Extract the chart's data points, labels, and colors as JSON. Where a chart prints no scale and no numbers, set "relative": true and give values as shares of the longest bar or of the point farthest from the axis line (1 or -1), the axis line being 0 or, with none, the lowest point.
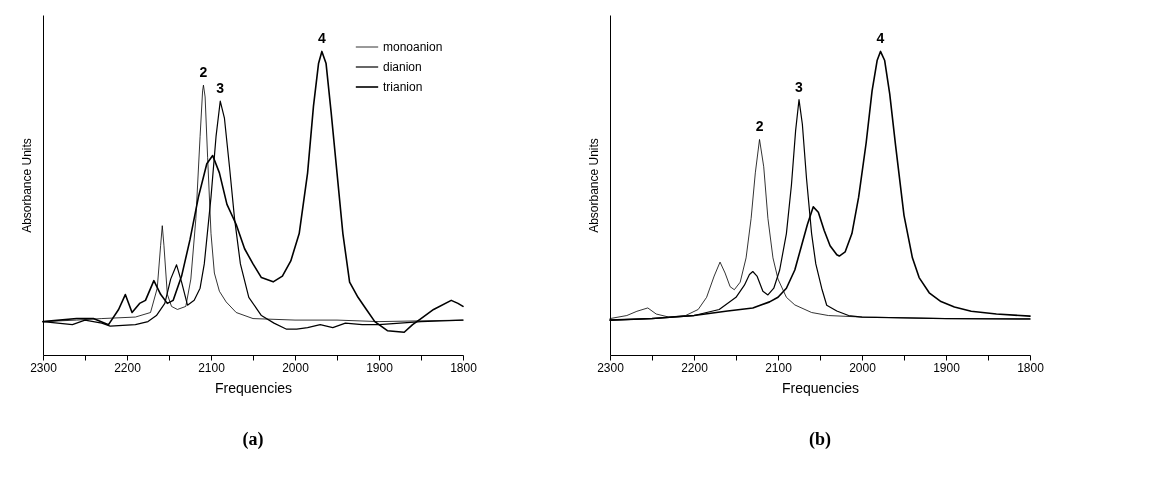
{
  "chart_data": [
    {
      "type": "line",
      "xlabel": "Frequencies",
      "ylabel": "Absorbance Units",
      "relative": true,
      "legend": "top right",
      "tick_labels": "x",
      "grid": false,
      "line_style": "solid",
      "marker": "none",
      "xlim": [
        2300,
        1800
      ],
      "xticks": [
        2300,
        {
          "value": 2250,
          "label": null
        },
        2200,
        {
          "value": 2150,
          "label": null
        },
        2100,
        {
          "value": 2050,
          "label": null
        },
        2000,
        {
          "value": 1950,
          "label": null
        },
        1900,
        {
          "value": 1850,
          "label": null
        },
        1800
      ],
      "series": [
        {
          "name": "monoanion",
          "color": "#000000",
          "x": [
            2300,
            2260,
            2230,
            2190,
            2172,
            2164,
            2160,
            2158,
            2156,
            2152,
            2147,
            2140,
            2130,
            2124,
            2118,
            2113,
            2110,
            2109,
            2107,
            2104,
            2100,
            2096,
            2090,
            2082,
            2070,
            2050,
            2000,
            1950,
            1900,
            1800
          ],
          "values": [
            0.11,
            0.115,
            0.12,
            0.125,
            0.14,
            0.22,
            0.36,
            0.426,
            0.36,
            0.2,
            0.16,
            0.15,
            0.16,
            0.25,
            0.45,
            0.72,
            0.87,
            0.889,
            0.85,
            0.65,
            0.4,
            0.27,
            0.21,
            0.175,
            0.14,
            0.12,
            0.115,
            0.115,
            0.11,
            0.115
          ]
        },
        {
          "name": "dianion",
          "color": "#000000",
          "x": [
            2300,
            2265,
            2250,
            2230,
            2220,
            2190,
            2175,
            2165,
            2155,
            2148,
            2141,
            2135,
            2128,
            2120,
            2113,
            2108,
            2100,
            2094,
            2089,
            2084,
            2078,
            2072,
            2065,
            2055,
            2040,
            2025,
            2010,
            1998,
            1985,
            1970,
            1955,
            1940,
            1920,
            1900,
            1850,
            1800
          ],
          "values": [
            0.11,
            0.1,
            0.115,
            0.105,
            0.095,
            0.1,
            0.11,
            0.13,
            0.17,
            0.25,
            0.297,
            0.24,
            0.164,
            0.18,
            0.22,
            0.3,
            0.52,
            0.72,
            0.836,
            0.78,
            0.62,
            0.45,
            0.3,
            0.19,
            0.13,
            0.105,
            0.085,
            0.085,
            0.09,
            0.1,
            0.09,
            0.105,
            0.1,
            0.1,
            0.11,
            0.115
          ]
        },
        {
          "name": "trianion",
          "color": "#000000",
          "x": [
            2300,
            2260,
            2240,
            2222,
            2210,
            2202,
            2194,
            2185,
            2178,
            2168,
            2160,
            2152,
            2145,
            2135,
            2125,
            2115,
            2105,
            2098,
            2090,
            2081,
            2070,
            2060,
            2050,
            2040,
            2026,
            2015,
            2005,
            1995,
            1985,
            1978,
            1972,
            1968,
            1963,
            1957,
            1950,
            1943,
            1935,
            1925,
            1915,
            1905,
            1890,
            1870,
            1860,
            1850,
            1835,
            1814,
            1806,
            1800
          ],
          "values": [
            0.11,
            0.12,
            0.12,
            0.1,
            0.15,
            0.199,
            0.14,
            0.17,
            0.18,
            0.245,
            0.2,
            0.17,
            0.18,
            0.26,
            0.38,
            0.52,
            0.63,
            0.657,
            0.6,
            0.496,
            0.43,
            0.35,
            0.3,
            0.255,
            0.241,
            0.26,
            0.31,
            0.4,
            0.6,
            0.82,
            0.96,
            1.0,
            0.96,
            0.8,
            0.6,
            0.4,
            0.24,
            0.19,
            0.15,
            0.11,
            0.08,
            0.075,
            0.1,
            0.12,
            0.15,
            0.18,
            0.17,
            0.16
          ]
        }
      ],
      "annotations": [
        {
          "text": "2",
          "x": 2109,
          "y": 0.889
        },
        {
          "text": "3",
          "x": 2089,
          "y": 0.836
        },
        {
          "text": "4",
          "x": 1968,
          "y": 1.0
        },
        "(a)"
      ]
    },
    {
      "type": "line",
      "xlabel": "Frequencies",
      "ylabel": "Absorbance Units",
      "relative": true,
      "tick_labels": "x",
      "grid": false,
      "line_style": "solid",
      "marker": "none",
      "xlim": [
        2300,
        1800
      ],
      "xticks": [
        2300,
        {
          "value": 2250,
          "label": null
        },
        2200,
        {
          "value": 2150,
          "label": null
        },
        2100,
        {
          "value": 2050,
          "label": null
        },
        2000,
        {
          "value": 1950,
          "label": null
        },
        1900,
        {
          "value": 1850,
          "label": null
        },
        1800
      ],
      "series": [
        {
          "color": "#000000",
          "x": [
            2300,
            2280,
            2268,
            2255,
            2245,
            2230,
            2210,
            2195,
            2185,
            2176,
            2169,
            2163,
            2157,
            2152,
            2145,
            2138,
            2132,
            2127,
            2122,
            2117,
            2112,
            2106,
            2100,
            2090,
            2080,
            2060,
            2040,
            2000,
            1900,
            1800
          ],
          "values": [
            0.12,
            0.13,
            0.144,
            0.155,
            0.135,
            0.125,
            0.13,
            0.15,
            0.19,
            0.26,
            0.306,
            0.27,
            0.225,
            0.215,
            0.24,
            0.32,
            0.45,
            0.6,
            0.71,
            0.62,
            0.45,
            0.32,
            0.25,
            0.19,
            0.165,
            0.14,
            0.13,
            0.125,
            0.12,
            0.12
          ]
        },
        {
          "color": "#000000",
          "x": [
            2300,
            2250,
            2200,
            2170,
            2150,
            2140,
            2134,
            2130,
            2125,
            2118,
            2112,
            2105,
            2098,
            2090,
            2084,
            2079,
            2075,
            2071,
            2066,
            2060,
            2055,
            2048,
            2042,
            2030,
            2016,
            2000,
            1900,
            1800
          ],
          "values": [
            0.115,
            0.12,
            0.13,
            0.15,
            0.19,
            0.23,
            0.265,
            0.275,
            0.26,
            0.21,
            0.198,
            0.22,
            0.28,
            0.4,
            0.56,
            0.74,
            0.841,
            0.76,
            0.58,
            0.4,
            0.3,
            0.22,
            0.164,
            0.145,
            0.13,
            0.125,
            0.12,
            0.118
          ]
        },
        {
          "color": "#000000",
          "x": [
            2300,
            2250,
            2200,
            2160,
            2130,
            2110,
            2100,
            2090,
            2080,
            2072,
            2065,
            2058,
            2052,
            2045,
            2038,
            2030,
            2027,
            2020,
            2012,
            2004,
            1995,
            1988,
            1982,
            1978,
            1973,
            1967,
            1960,
            1950,
            1940,
            1932,
            1920,
            1906,
            1890,
            1870,
            1840,
            1800
          ],
          "values": [
            0.115,
            0.12,
            0.13,
            0.145,
            0.155,
            0.175,
            0.19,
            0.22,
            0.28,
            0.36,
            0.43,
            0.488,
            0.47,
            0.41,
            0.36,
            0.33,
            0.326,
            0.34,
            0.4,
            0.52,
            0.7,
            0.87,
            0.97,
            1.0,
            0.97,
            0.86,
            0.69,
            0.46,
            0.32,
            0.255,
            0.205,
            0.176,
            0.158,
            0.144,
            0.135,
            0.128
          ]
        }
      ],
      "annotations": [
        {
          "text": "2",
          "x": 2122,
          "y": 0.71
        },
        {
          "text": "3",
          "x": 2075,
          "y": 0.841
        },
        {
          "text": "4",
          "x": 1978,
          "y": 1.0
        },
        "(b)"
      ]
    }
  ]
}
